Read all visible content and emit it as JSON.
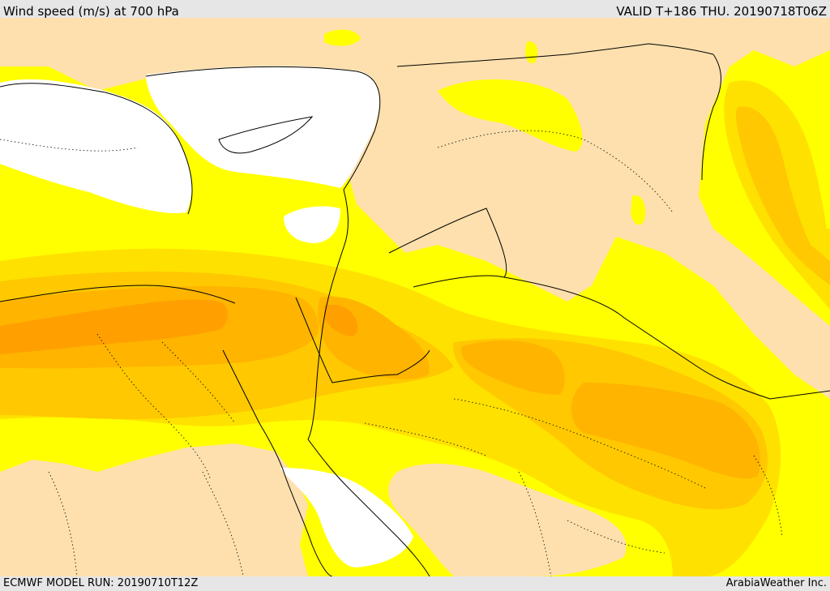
{
  "header": {
    "title": "Wind speed (m/s) at 700 hPa",
    "valid": "VALID T+186 THU. 20190718T06Z"
  },
  "footer": {
    "model_run": "ECMWF MODEL RUN: 20190710T12Z",
    "credit": "ArabiaWeather Inc."
  },
  "map": {
    "variable": "Wind speed",
    "units": "m/s",
    "level": "700 hPa",
    "colors": {
      "sea_or_calm": "#ffffff",
      "level_1": "#fde0ad",
      "level_2": "#ffff00",
      "level_3": "#ffe100",
      "level_4": "#ffc800",
      "level_5": "#ffb400",
      "level_6": "#ffa000",
      "boundary": "#000000"
    }
  }
}
